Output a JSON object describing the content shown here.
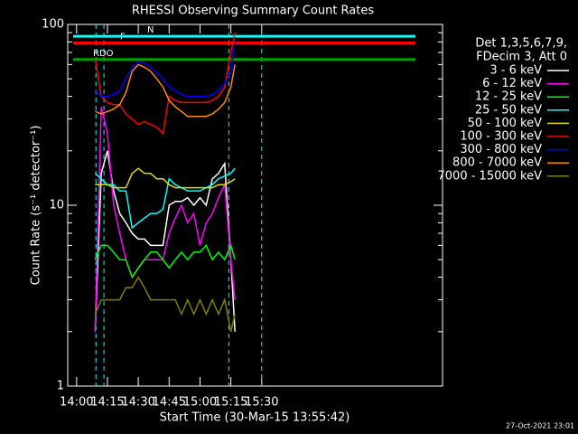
{
  "chart_data": {
    "type": "line",
    "title": "RHESSI Observing Summary Count Rates",
    "x_label": "Start Time (30-Mar-15 13:55:42)",
    "y_label": "Count Rate (s⁻¹ detector⁻¹)",
    "timestamp": "27-Oct-2021 23:01",
    "legend_header": [
      "Det 1,3,5,6,7,9,",
      "FDecim 3, Att 0"
    ],
    "log_y": true,
    "xlim": [
      835.7,
      1017.9
    ],
    "xticks": [
      {
        "value": 840,
        "label": "14:00"
      },
      {
        "value": 855,
        "label": "14:15"
      },
      {
        "value": 870,
        "label": "14:30"
      },
      {
        "value": 885,
        "label": "14:45"
      },
      {
        "value": 900,
        "label": "15:00"
      },
      {
        "value": 915,
        "label": "15:15"
      },
      {
        "value": 930,
        "label": "15:30"
      }
    ],
    "ylim": [
      1,
      100
    ],
    "yticks": [
      1,
      10,
      100
    ],
    "yticks_minor": [
      2,
      3,
      4,
      5,
      6,
      7,
      8,
      9,
      20,
      30,
      40,
      50,
      60,
      70,
      80,
      90
    ],
    "x": [
      849,
      852,
      855,
      858,
      861,
      864,
      867,
      870,
      873,
      876,
      879,
      882,
      885,
      888,
      891,
      894,
      897,
      900,
      903,
      906,
      909,
      912,
      915,
      917
    ],
    "flags": [
      {
        "label": "RDO",
        "y": 64,
        "color": "#00a000"
      },
      {
        "label": "F",
        "y": 79,
        "color": "#ff0000"
      },
      {
        "label": "N",
        "y": 86,
        "color": "#00ffff"
      }
    ],
    "vlines": [
      849.4,
      853.3,
      914,
      930
    ],
    "vline_color": "#00ffff",
    "series": [
      {
        "name": "3 - 6 keV",
        "color": "#ffffff",
        "values": [
          2,
          15,
          20,
          12,
          9,
          8,
          7,
          6.5,
          6.5,
          6,
          6,
          6,
          10,
          10.5,
          10.5,
          11,
          10,
          11,
          10,
          14,
          15,
          17,
          5,
          2
        ]
      },
      {
        "name": "6 - 12 keV",
        "color": "#ff00ff",
        "values": [
          2,
          35,
          25,
          10,
          7,
          5,
          4,
          4.5,
          5,
          5,
          5,
          5,
          7,
          8.5,
          10,
          8,
          9,
          6,
          8,
          9,
          11,
          13,
          5,
          3
        ]
      },
      {
        "name": "12 - 25 keV",
        "color": "#00ff00",
        "values": [
          5,
          6,
          6,
          5.5,
          5,
          5,
          4,
          4.5,
          5,
          5.5,
          5.5,
          5,
          4.5,
          5,
          5.5,
          5,
          5.5,
          5.5,
          6,
          5,
          5.5,
          5,
          6,
          5
        ]
      },
      {
        "name": "25 - 50 keV",
        "color": "#00ffff",
        "values": [
          15,
          14,
          13,
          13,
          12,
          12,
          7.5,
          8,
          8.5,
          9,
          9,
          9.5,
          14,
          13,
          12.5,
          12,
          12,
          12,
          12.5,
          13,
          14,
          14.5,
          15,
          16
        ]
      },
      {
        "name": "50 - 100 keV",
        "color": "#dddd00",
        "values": [
          13,
          13,
          13,
          12.5,
          12.5,
          12.5,
          15,
          16,
          15,
          15,
          14,
          14,
          13,
          12.5,
          12.5,
          12.5,
          12.5,
          12.5,
          12.5,
          12.5,
          13,
          13,
          13.5,
          14
        ]
      },
      {
        "name": "100 - 300 keV",
        "color": "#ff0000",
        "values": [
          65,
          40,
          37,
          36,
          36,
          32,
          30,
          28,
          29,
          28,
          27,
          25,
          40,
          38,
          37,
          37,
          37,
          37,
          37,
          38,
          40,
          45,
          70,
          90
        ]
      },
      {
        "name": "300 - 800 keV",
        "color": "#0000ff",
        "values": [
          43,
          40,
          40,
          41,
          43,
          50,
          58,
          62,
          61,
          58,
          54,
          50,
          45,
          43,
          41,
          40,
          40,
          40,
          40,
          41,
          43,
          47,
          55,
          80
        ]
      },
      {
        "name": "800 - 7000 keV",
        "color": "#ff8c00",
        "values": [
          33,
          32,
          33,
          34,
          36,
          42,
          55,
          60,
          58,
          55,
          50,
          45,
          38,
          35,
          33,
          31,
          31,
          31,
          31,
          32,
          34,
          37,
          45,
          60
        ]
      },
      {
        "name": "7000 - 15000 keV",
        "color": "#808000",
        "values": [
          2.5,
          3,
          3,
          3,
          3,
          3.5,
          3.5,
          4,
          3.5,
          3,
          3,
          3,
          3,
          3,
          2.5,
          3,
          2.5,
          3,
          2.5,
          3,
          2.5,
          3,
          2,
          2.5
        ]
      }
    ]
  }
}
